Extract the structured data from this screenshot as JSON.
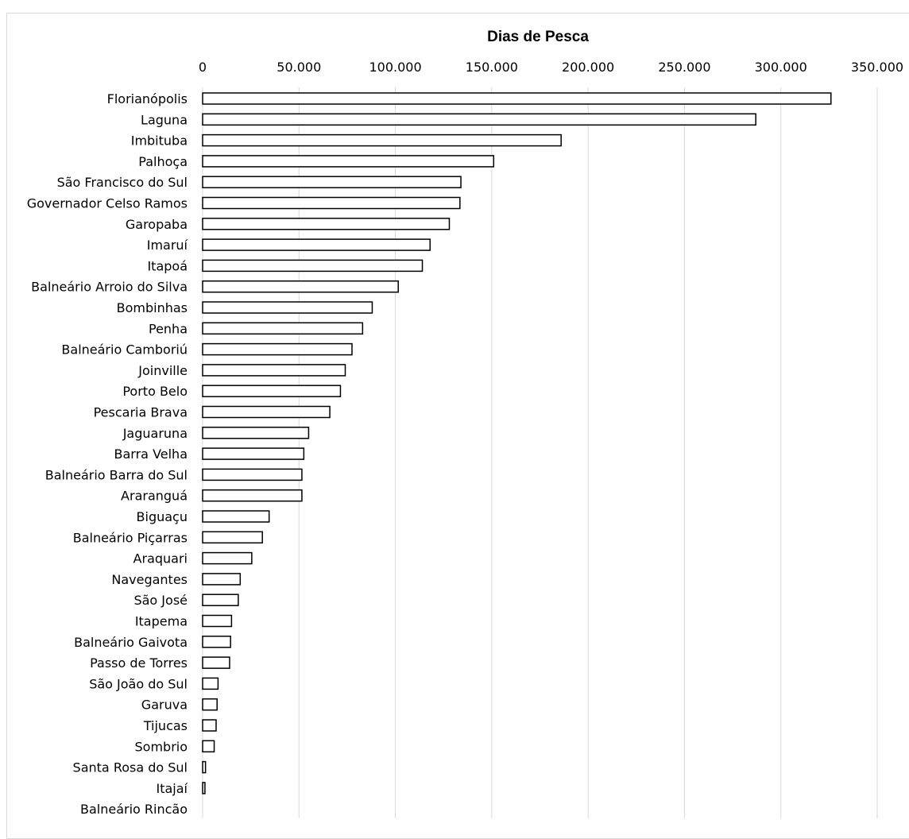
{
  "chart_data": {
    "type": "bar",
    "orientation": "horizontal",
    "title": "Dias de Pesca",
    "xlabel": "",
    "ylabel": "",
    "xlim": [
      0,
      350000
    ],
    "x_ticks": [
      0,
      50000,
      100000,
      150000,
      200000,
      250000,
      300000,
      350000
    ],
    "x_tick_labels": [
      "0",
      "50.000",
      "100.000",
      "150.000",
      "200.000",
      "250.000",
      "300.000",
      "350.000"
    ],
    "axis_position": "top",
    "grid": true,
    "legend": "none",
    "colors": {
      "bar_fill": "#ffffff",
      "bar_stroke": "#000000",
      "grid": "#d9d9d9"
    },
    "categories": [
      "Florianópolis",
      "Laguna",
      "Imbituba",
      "Palhoça",
      "São Francisco do Sul",
      "Governador Celso Ramos",
      "Garopaba",
      "Imaruí",
      "Itapoá",
      "Balneário Arroio do Silva",
      "Bombinhas",
      "Penha",
      "Balneário Camboriú",
      "Joinville",
      "Porto Belo",
      "Pescaria Brava",
      "Jaguaruna",
      "Barra Velha",
      "Balneário Barra do Sul",
      "Araranguá",
      "Biguaçu",
      "Balneário Piçarras",
      "Araquari",
      "Navegantes",
      "São José",
      "Itapema",
      "Balneário Gaivota",
      "Passo de Torres",
      "São João do Sul",
      "Garuva",
      "Tijucas",
      "Sombrio",
      "Santa Rosa do Sul",
      "Itajaí",
      "Balneário Rincão"
    ],
    "values": [
      326000,
      287000,
      186000,
      151000,
      134000,
      133500,
      128000,
      118000,
      114000,
      101500,
      88000,
      83000,
      77500,
      74000,
      71500,
      66000,
      55000,
      52500,
      51500,
      51500,
      34500,
      31000,
      25500,
      19500,
      18500,
      15000,
      14500,
      14000,
      8000,
      7500,
      7000,
      6000,
      1500,
      1200,
      0
    ]
  }
}
